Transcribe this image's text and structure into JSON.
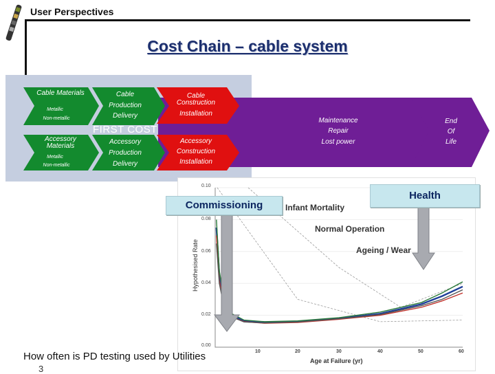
{
  "header": {
    "title": "User Perspectives"
  },
  "title": "Cost Chain – cable system",
  "chain": {
    "cable_materials": "Cable Materials",
    "metallic_1": "Metallic",
    "non_metallic_1": "Non-metallic",
    "accessory_materials": "Accessory Materials",
    "metallic_2": "Metallic",
    "non_metallic_2": "Non-metallic",
    "cable_production": "Cable",
    "cable_production_2": "Production",
    "cable_delivery": "Delivery",
    "cable_construction": "Cable Construction",
    "cable_installation": "Installation",
    "first_cost": "FIRST COST",
    "accessory_production": "Accessory",
    "accessory_production_2": "Production",
    "accessory_delivery": "Delivery",
    "accessory_construction": "Accessory",
    "accessory_construction_2": "Construction",
    "accessory_installation": "Installation",
    "maintenance": "Maintenance",
    "repair": "Repair",
    "lost_power": "Lost power",
    "end": "End",
    "of": "Of",
    "life": "Life"
  },
  "callouts": {
    "commissioning": "Commissioning",
    "health": "Health"
  },
  "colors": {
    "green": "#138a2e",
    "red": "#e01010",
    "purple": "#6f1e96",
    "panel": "#c5cee0",
    "callout_bg": "#c7e7ee",
    "arrow_fill": "#a8aab0"
  },
  "chart_data": {
    "type": "line",
    "labels": {
      "infant": "Infant Mortality",
      "normal": "Normal Operation",
      "ageing": "Ageing / Wear"
    },
    "ylabel": "Hypothesised Rate",
    "xlabel": "Age at Failure (yr)",
    "y_ticks": [
      "0.10",
      "0.08",
      "0.06",
      "0.04",
      "0.02",
      "0.00"
    ],
    "x_ticks": [
      "10",
      "20",
      "30",
      "40",
      "50",
      "60"
    ],
    "xlim": [
      0,
      60
    ],
    "ylim": [
      0,
      0.1
    ],
    "series": [
      {
        "values": [
          [
            0.3,
            0.075
          ],
          [
            1,
            0.045
          ],
          [
            2,
            0.03
          ],
          [
            4,
            0.02
          ],
          [
            7,
            0.0165
          ],
          [
            12,
            0.0155
          ],
          [
            20,
            0.016
          ],
          [
            30,
            0.018
          ],
          [
            40,
            0.021
          ],
          [
            50,
            0.027
          ],
          [
            55,
            0.032
          ],
          [
            60,
            0.038
          ]
        ]
      },
      {
        "values": [
          [
            0.3,
            0.07
          ],
          [
            1,
            0.042
          ],
          [
            2,
            0.028
          ],
          [
            4,
            0.019
          ],
          [
            7,
            0.016
          ],
          [
            12,
            0.015
          ],
          [
            20,
            0.0155
          ],
          [
            30,
            0.0175
          ],
          [
            40,
            0.02
          ],
          [
            50,
            0.025
          ],
          [
            55,
            0.029
          ],
          [
            60,
            0.034
          ]
        ]
      },
      {
        "values": [
          [
            0.3,
            0.08
          ],
          [
            1,
            0.048
          ],
          [
            2,
            0.032
          ],
          [
            4,
            0.021
          ],
          [
            7,
            0.017
          ],
          [
            12,
            0.016
          ],
          [
            20,
            0.0165
          ],
          [
            30,
            0.0185
          ],
          [
            40,
            0.022
          ],
          [
            50,
            0.028
          ],
          [
            55,
            0.034
          ],
          [
            60,
            0.041
          ]
        ]
      },
      {
        "values": [
          [
            0.3,
            0.065
          ],
          [
            1,
            0.04
          ],
          [
            2,
            0.027
          ],
          [
            4,
            0.019
          ],
          [
            7,
            0.0158
          ],
          [
            12,
            0.0152
          ],
          [
            20,
            0.0158
          ],
          [
            30,
            0.0178
          ],
          [
            40,
            0.0205
          ],
          [
            50,
            0.026
          ],
          [
            55,
            0.03
          ],
          [
            60,
            0.036
          ]
        ]
      }
    ],
    "dashed": [
      {
        "values": [
          [
            0.5,
            0.1
          ],
          [
            20,
            0.03
          ],
          [
            40,
            0.016
          ],
          [
            60,
            0.017
          ]
        ]
      },
      {
        "values": [
          [
            8,
            0.1
          ],
          [
            30,
            0.05
          ],
          [
            45,
            0.025
          ],
          [
            60,
            0.04
          ]
        ]
      }
    ]
  },
  "footer": {
    "question": "How often is PD testing used by Utilities",
    "page": "3"
  }
}
